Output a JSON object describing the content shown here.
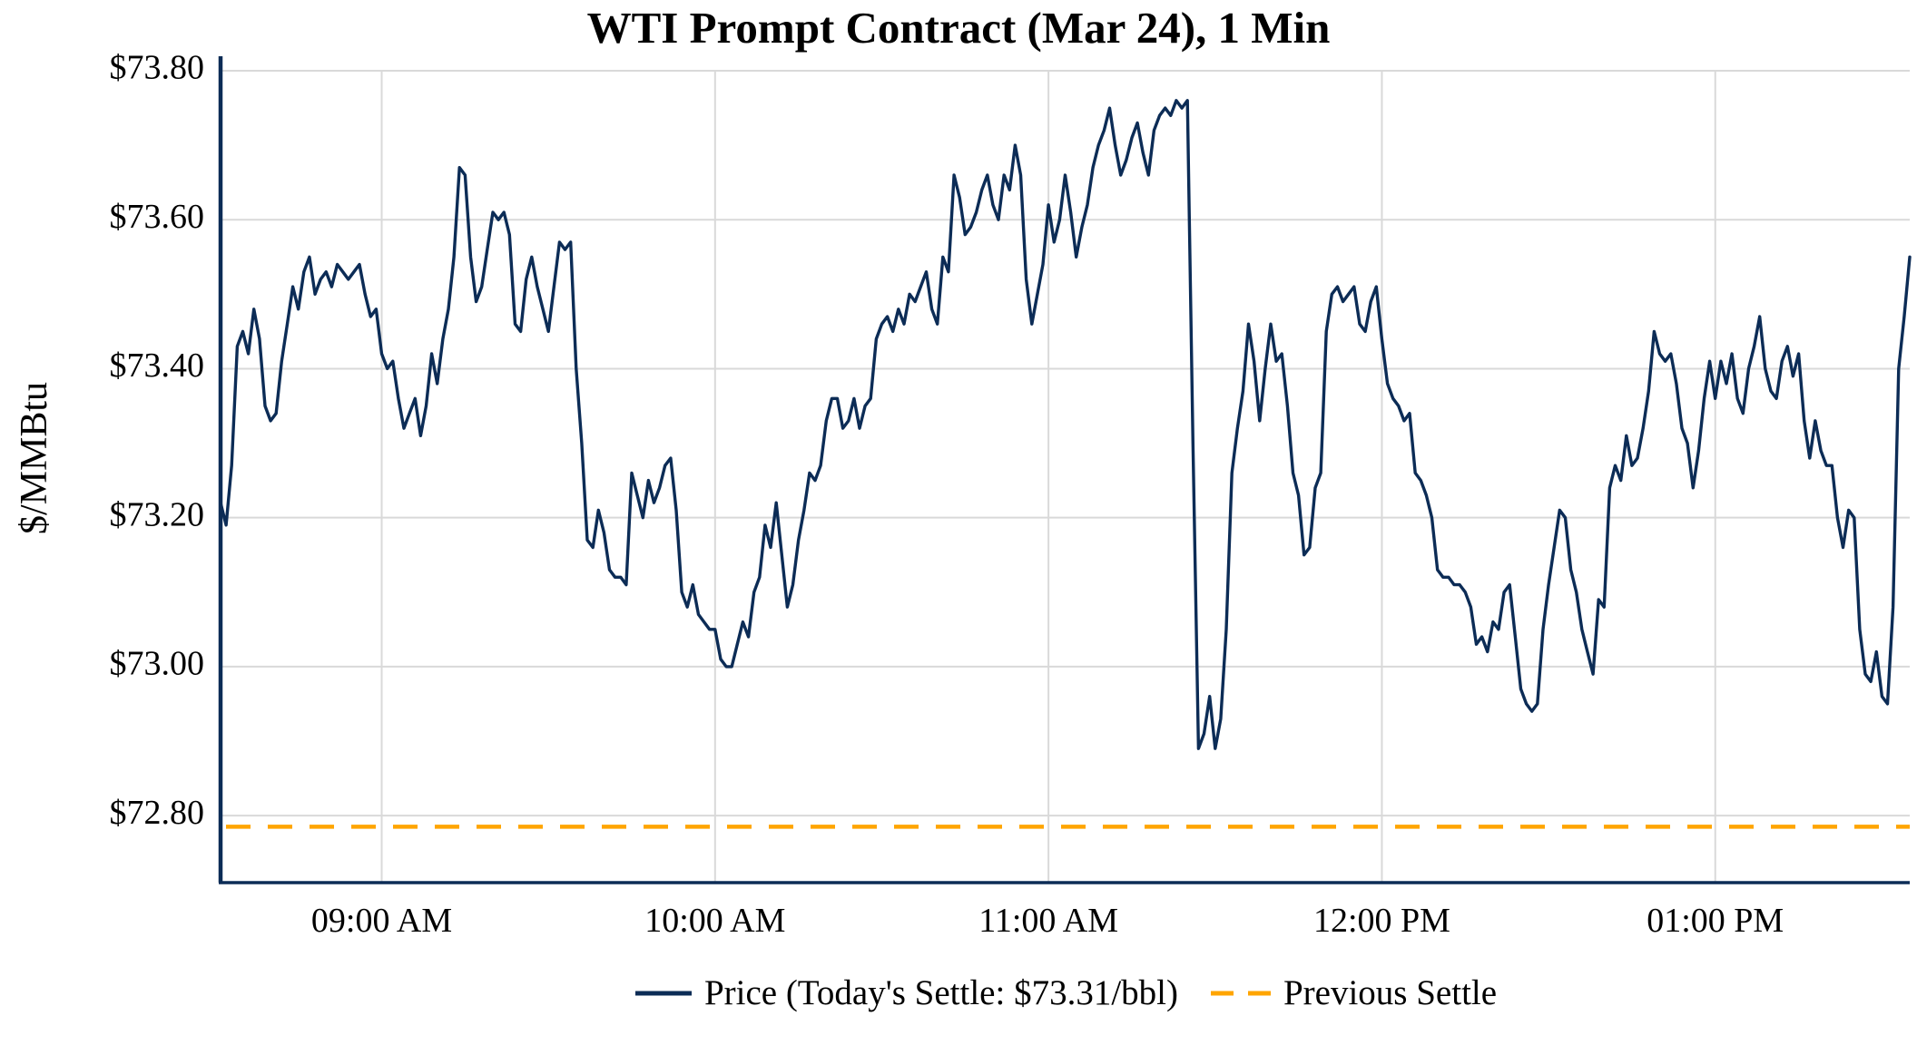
{
  "chart_data": {
    "type": "line",
    "title": "WTI Prompt Contract (Mar 24), 1 Min",
    "ylabel": "$/MMBtu",
    "xlabel": "",
    "ylim": [
      72.71,
      73.8
    ],
    "grid": true,
    "legend_position": "bottom",
    "y_ticks": [
      {
        "value": 73.8,
        "label": "$73.80"
      },
      {
        "value": 73.6,
        "label": "$73.60"
      },
      {
        "value": 73.4,
        "label": "$73.40"
      },
      {
        "value": 73.2,
        "label": "$73.20"
      },
      {
        "value": 73.0,
        "label": "$73.00"
      },
      {
        "value": 72.8,
        "label": "$72.80"
      }
    ],
    "x_ticks": [
      {
        "time": "09:00 AM",
        "label": "09:00 AM"
      },
      {
        "time": "10:00 AM",
        "label": "10:00 AM"
      },
      {
        "time": "11:00 AM",
        "label": "11:00 AM"
      },
      {
        "time": "12:00 PM",
        "label": "12:00 PM"
      },
      {
        "time": "01:00 PM",
        "label": "01:00 PM"
      }
    ],
    "series": [
      {
        "name": "Price",
        "legend_label": "Price (Today's Settle: $73.31/bbl)",
        "color": "#0c2c56",
        "start_time": "08:31 AM",
        "interval_minutes": 1,
        "values": [
          73.22,
          73.19,
          73.27,
          73.43,
          73.45,
          73.42,
          73.48,
          73.44,
          73.35,
          73.33,
          73.34,
          73.41,
          73.46,
          73.51,
          73.48,
          73.53,
          73.55,
          73.5,
          73.52,
          73.53,
          73.51,
          73.54,
          73.53,
          73.52,
          73.53,
          73.54,
          73.5,
          73.47,
          73.48,
          73.42,
          73.4,
          73.41,
          73.36,
          73.32,
          73.34,
          73.36,
          73.31,
          73.35,
          73.42,
          73.38,
          73.44,
          73.48,
          73.55,
          73.67,
          73.66,
          73.55,
          73.49,
          73.51,
          73.56,
          73.61,
          73.6,
          73.61,
          73.58,
          73.46,
          73.45,
          73.52,
          73.55,
          73.51,
          73.48,
          73.45,
          73.51,
          73.57,
          73.56,
          73.57,
          73.4,
          73.3,
          73.17,
          73.16,
          73.21,
          73.18,
          73.13,
          73.12,
          73.12,
          73.11,
          73.26,
          73.23,
          73.2,
          73.25,
          73.22,
          73.24,
          73.27,
          73.28,
          73.21,
          73.1,
          73.08,
          73.11,
          73.07,
          73.06,
          73.05,
          73.05,
          73.01,
          73.0,
          73.0,
          73.03,
          73.06,
          73.04,
          73.1,
          73.12,
          73.19,
          73.16,
          73.22,
          73.15,
          73.08,
          73.11,
          73.17,
          73.21,
          73.26,
          73.25,
          73.27,
          73.33,
          73.36,
          73.36,
          73.32,
          73.33,
          73.36,
          73.32,
          73.35,
          73.36,
          73.44,
          73.46,
          73.47,
          73.45,
          73.48,
          73.46,
          73.5,
          73.49,
          73.51,
          73.53,
          73.48,
          73.46,
          73.55,
          73.53,
          73.66,
          73.63,
          73.58,
          73.59,
          73.61,
          73.64,
          73.66,
          73.62,
          73.6,
          73.66,
          73.64,
          73.7,
          73.66,
          73.52,
          73.46,
          73.5,
          73.54,
          73.62,
          73.57,
          73.6,
          73.66,
          73.61,
          73.55,
          73.59,
          73.62,
          73.67,
          73.7,
          73.72,
          73.75,
          73.7,
          73.66,
          73.68,
          73.71,
          73.73,
          73.69,
          73.66,
          73.72,
          73.74,
          73.75,
          73.74,
          73.76,
          73.75,
          73.76,
          73.3,
          72.89,
          72.91,
          72.96,
          72.89,
          72.93,
          73.05,
          73.26,
          73.32,
          73.37,
          73.46,
          73.41,
          73.33,
          73.4,
          73.46,
          73.41,
          73.42,
          73.35,
          73.26,
          73.23,
          73.15,
          73.16,
          73.24,
          73.26,
          73.45,
          73.5,
          73.51,
          73.49,
          73.5,
          73.51,
          73.46,
          73.45,
          73.49,
          73.51,
          73.44,
          73.38,
          73.36,
          73.35,
          73.33,
          73.34,
          73.26,
          73.25,
          73.23,
          73.2,
          73.13,
          73.12,
          73.12,
          73.11,
          73.11,
          73.1,
          73.08,
          73.03,
          73.04,
          73.02,
          73.06,
          73.05,
          73.1,
          73.11,
          73.04,
          72.97,
          72.95,
          72.94,
          72.95,
          73.05,
          73.11,
          73.16,
          73.21,
          73.2,
          73.13,
          73.1,
          73.05,
          73.02,
          72.99,
          73.09,
          73.08,
          73.24,
          73.27,
          73.25,
          73.31,
          73.27,
          73.28,
          73.32,
          73.37,
          73.45,
          73.42,
          73.41,
          73.42,
          73.38,
          73.32,
          73.3,
          73.24,
          73.29,
          73.36,
          73.41,
          73.36,
          73.41,
          73.38,
          73.42,
          73.36,
          73.34,
          73.4,
          73.43,
          73.47,
          73.4,
          73.37,
          73.36,
          73.41,
          73.43,
          73.39,
          73.42,
          73.33,
          73.28,
          73.33,
          73.29,
          73.27,
          73.27,
          73.2,
          73.16,
          73.21,
          73.2,
          73.05,
          72.99,
          72.98,
          73.02,
          72.96,
          72.95,
          73.08,
          73.4,
          73.47,
          73.55
        ]
      }
    ],
    "previous_settle": {
      "legend_label": "Previous Settle",
      "color": "#FFA500",
      "value": 72.785,
      "line_style": "dashed"
    }
  },
  "colors": {
    "price_line": "#0c2c56",
    "previous_settle": "#FFA500",
    "grid": "#d9d9d9",
    "axis": "#0c2c56",
    "text": "#000000",
    "background": "#ffffff"
  }
}
